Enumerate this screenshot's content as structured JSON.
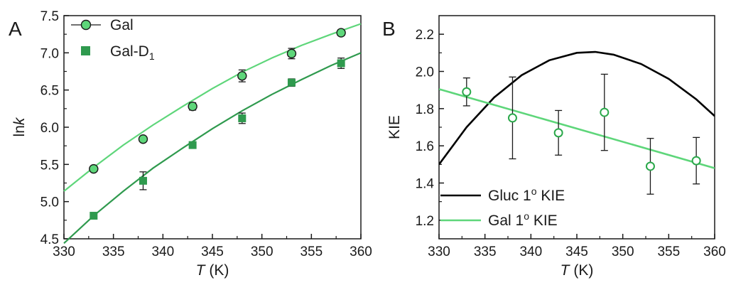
{
  "chart_data": [
    {
      "type": "scatter",
      "panel_label": "A",
      "xlabel_var": "T",
      "xlabel_unit": " (K)",
      "ylabel_prefix": "ln",
      "ylabel_var": "k",
      "xlim": [
        330,
        360
      ],
      "ylim": [
        4.5,
        7.5
      ],
      "xticks": [
        330,
        335,
        340,
        345,
        350,
        355,
        360
      ],
      "yticks": [
        4.5,
        5.0,
        5.5,
        6.0,
        6.5,
        7.0,
        7.5
      ],
      "legend_position": "top-left",
      "series": [
        {
          "name": "Gal",
          "marker": "circle",
          "color": "#5ed67a",
          "fit_color": "#5ed67a",
          "x": [
            333,
            338,
            343,
            348,
            353,
            358
          ],
          "y": [
            5.44,
            5.84,
            6.28,
            6.69,
            6.99,
            7.27
          ],
          "err": [
            0.03,
            0.03,
            0.05,
            0.08,
            0.07,
            0.04
          ],
          "fit": {
            "x": [
              330,
              333,
              336,
              339,
              342,
              345,
              348,
              351,
              354,
              357,
              360
            ],
            "y": [
              5.14,
              5.46,
              5.76,
              6.03,
              6.28,
              6.52,
              6.74,
              6.93,
              7.1,
              7.25,
              7.39
            ]
          }
        },
        {
          "name": "Gal-D",
          "name_subscript": "1",
          "marker": "square",
          "color": "#2f9a4e",
          "fit_color": "#2f9a4e",
          "x": [
            333,
            338,
            343,
            348,
            353,
            358
          ],
          "y": [
            4.81,
            5.28,
            5.76,
            6.12,
            6.6,
            6.86
          ],
          "err": [
            0.04,
            0.12,
            0.04,
            0.07,
            0.05,
            0.07
          ],
          "fit": {
            "x": [
              330,
              333,
              336,
              339,
              342,
              345,
              348,
              351,
              354,
              357,
              360
            ],
            "y": [
              4.44,
              4.81,
              5.14,
              5.45,
              5.72,
              5.98,
              6.22,
              6.44,
              6.64,
              6.83,
              7.0
            ]
          }
        }
      ]
    },
    {
      "type": "scatter",
      "panel_label": "B",
      "xlabel_var": "T",
      "xlabel_unit": " (K)",
      "ylabel": "KIE",
      "xlim": [
        330,
        360
      ],
      "ylim": [
        1.1,
        2.3
      ],
      "xticks": [
        330,
        335,
        340,
        345,
        350,
        355,
        360
      ],
      "yticks": [
        1.2,
        1.4,
        1.6,
        1.8,
        2.0,
        2.2
      ],
      "legend_position": "bottom-left",
      "data_points": {
        "marker": "open-circle",
        "color": "#2aa84a",
        "x": [
          333,
          338,
          343,
          348,
          353,
          358
        ],
        "y": [
          1.89,
          1.75,
          1.67,
          1.78,
          1.49,
          1.52
        ],
        "err": [
          0.075,
          0.22,
          0.12,
          0.205,
          0.15,
          0.125
        ]
      },
      "series": [
        {
          "name": "Gluc 1",
          "name_superscript": "o",
          "name_suffix": " KIE",
          "color": "#000000",
          "x": [
            330,
            333,
            336,
            339,
            342,
            345,
            347,
            349,
            352,
            355,
            358,
            360
          ],
          "y": [
            1.5,
            1.7,
            1.86,
            1.98,
            2.06,
            2.1,
            2.105,
            2.09,
            2.04,
            1.96,
            1.85,
            1.76
          ]
        },
        {
          "name": "Gal 1",
          "name_superscript": "o",
          "name_suffix": " KIE",
          "color": "#5ed67a",
          "x": [
            330,
            360
          ],
          "y": [
            1.905,
            1.48
          ]
        }
      ]
    }
  ]
}
